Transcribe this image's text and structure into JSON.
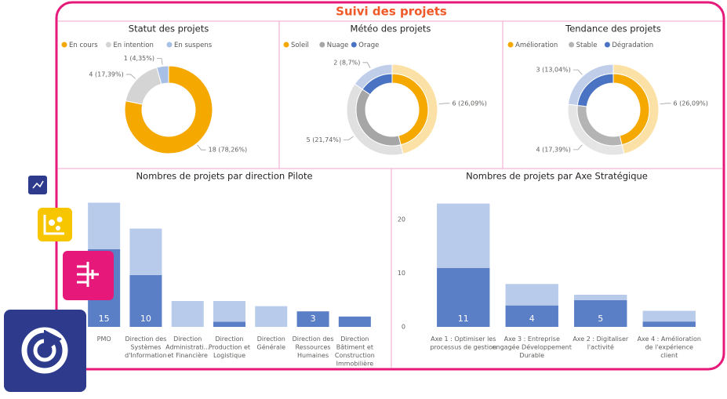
{
  "title": "Suivi des projets",
  "chart_data": [
    {
      "type": "donut",
      "title": "Statut des projets",
      "categories": [
        "En cours",
        "En intention",
        "En suspens"
      ],
      "values": [
        18,
        4,
        1
      ],
      "value_labels": [
        "18 (78,26%)",
        "4 (17,39%)",
        "1 (4,35%)"
      ],
      "colors": [
        "#f5a800",
        "#d4d4d4",
        "#a9c0e6"
      ]
    },
    {
      "type": "donut",
      "title": "Météo des projets",
      "categories": [
        "Soleil",
        "Nuage",
        "Orage"
      ],
      "values": [
        6,
        5,
        2
      ],
      "value_labels": [
        "6 (26,09%)",
        "5 (21,74%)",
        "2 (8,7%)"
      ],
      "colors": [
        "#f5a800",
        "#a6a6a6",
        "#4a73c4"
      ]
    },
    {
      "type": "donut",
      "title": "Tendance des projets",
      "categories": [
        "Amélioration",
        "Stable",
        "Dégradation"
      ],
      "values": [
        6,
        4,
        3
      ],
      "value_labels": [
        "6 (26,09%)",
        "4 (17,39%)",
        "3 (13,04%)"
      ],
      "colors": [
        "#f5a800",
        "#b4b4b4",
        "#4a73c4"
      ]
    },
    {
      "type": "bar",
      "title": "Nombres de projets par direction Pilote",
      "categories": [
        "PMO",
        "Direction des Systèmes d'Information",
        "Direction Administrati... et Financière",
        "Direction Production et Logistique",
        "Direction Générale",
        "Direction des Ressources Humaines",
        "Direction Bâtiment et Construction Immobilière"
      ],
      "series": [
        {
          "color": "#5b7fc7",
          "values": [
            15,
            10,
            0,
            1,
            0,
            3,
            2
          ],
          "value_labels": [
            "15",
            "10",
            null,
            null,
            null,
            "3",
            null
          ]
        },
        {
          "color": "#b8cbeb",
          "values": [
            9,
            9,
            5,
            4,
            4,
            0,
            0
          ]
        }
      ],
      "ylim": [
        0,
        25
      ]
    },
    {
      "type": "bar",
      "title": "Nombres de projets par Axe Stratégique",
      "categories": [
        "Axe 1 : Optimiser les processus de gestion",
        "Axe 3 : Entreprise engagée Développement Durable",
        "Axe 2 : Digitaliser l'activité",
        "Axe 4 : Amélioration de l'expérience client"
      ],
      "series": [
        {
          "color": "#5b7fc7",
          "values": [
            11,
            4,
            5,
            1
          ],
          "value_labels": [
            "11",
            "4",
            "5",
            null
          ]
        },
        {
          "color": "#b8cbeb",
          "values": [
            12,
            4,
            1,
            2
          ]
        }
      ],
      "ylim": [
        0,
        25
      ],
      "yticks": [
        0,
        10,
        20
      ]
    }
  ]
}
